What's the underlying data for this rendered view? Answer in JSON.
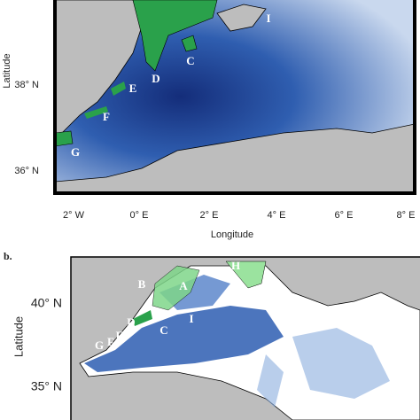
{
  "panel_a": {
    "y_axis_label": "Latitude",
    "x_axis_label": "Longitude",
    "y_tick_labels": [
      "38° N",
      "36° N"
    ],
    "x_tick_labels": [
      "2° W",
      "0° E",
      "2° E",
      "4° E",
      "6° E",
      "8° E"
    ],
    "site_labels": [
      "I",
      "C",
      "D",
      "E",
      "F",
      "G"
    ]
  },
  "panel_b": {
    "panel_label": "b.",
    "y_axis_label": "Latitude",
    "y_tick_labels": [
      "40° N",
      "35° N"
    ],
    "site_labels": [
      "B",
      "A",
      "H",
      "D",
      "C",
      "I",
      "E",
      "F",
      "G"
    ]
  }
}
